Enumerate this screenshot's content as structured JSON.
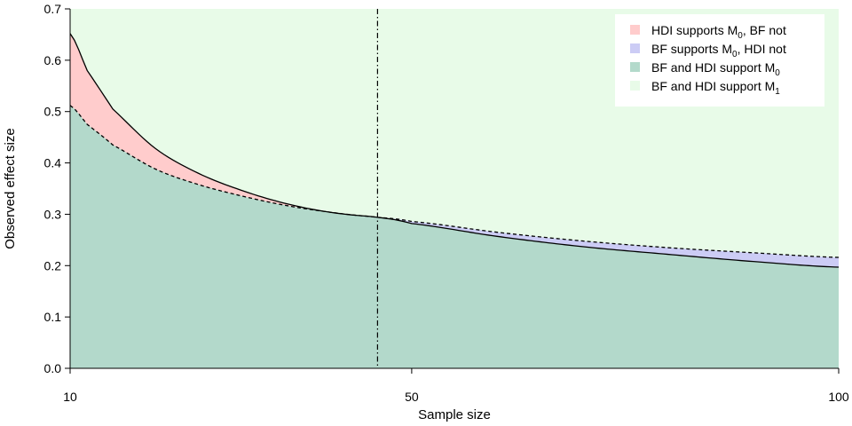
{
  "chart_data": {
    "type": "area",
    "title": "",
    "xlabel": "Sample size",
    "ylabel": "Observed effect size",
    "xlim": [
      10,
      100
    ],
    "ylim": [
      0,
      0.7
    ],
    "xticks": [
      10,
      50,
      100
    ],
    "yticks": [
      0.0,
      0.1,
      0.2,
      0.3,
      0.4,
      0.5,
      0.6,
      0.7
    ],
    "ytick_labels": [
      "0.0",
      "0.1",
      "0.2",
      "0.3",
      "0.4",
      "0.5",
      "0.6",
      "0.7"
    ],
    "vline_x": 46,
    "grid": false,
    "legend_placement": "top-right",
    "colors": {
      "hdi_only": "#FFCCCC",
      "bf_only": "#CCCCF5",
      "both_m0": "#B3D9CB",
      "both_m1": "#E8FBE8",
      "line": "#000000"
    },
    "x": [
      10,
      12,
      15,
      20,
      25,
      30,
      35,
      40,
      45,
      46,
      50,
      60,
      70,
      80,
      90,
      100
    ],
    "series": [
      {
        "key": "hdi",
        "line_style": "solid",
        "values": [
          0.652,
          0.58,
          0.505,
          0.428,
          0.38,
          0.347,
          0.322,
          0.305,
          0.296,
          0.294,
          0.282,
          0.257,
          0.237,
          0.222,
          0.208,
          0.197
        ]
      },
      {
        "key": "bf",
        "line_style": "dashed",
        "values": [
          0.512,
          0.475,
          0.435,
          0.388,
          0.358,
          0.336,
          0.318,
          0.305,
          0.296,
          0.294,
          0.286,
          0.265,
          0.248,
          0.235,
          0.225,
          0.216
        ]
      }
    ],
    "legend": [
      {
        "color_key": "hdi_only",
        "text": "HDI supports M",
        "sub": "0",
        "after": ", BF not"
      },
      {
        "color_key": "bf_only",
        "text": "BF supports M",
        "sub": "0",
        "after": ", HDI not"
      },
      {
        "color_key": "both_m0",
        "text": "BF and HDI support M",
        "sub": "0",
        "after": ""
      },
      {
        "color_key": "both_m1",
        "text": "BF and HDI support M",
        "sub": "1",
        "after": ""
      }
    ]
  }
}
